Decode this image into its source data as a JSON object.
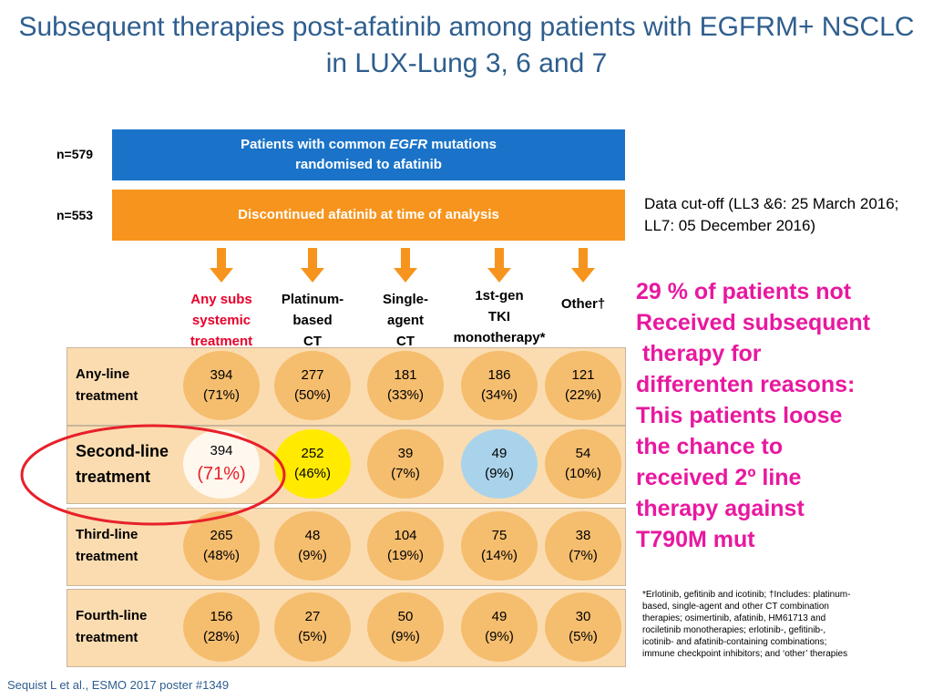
{
  "title": {
    "line1": "Subsequent therapies post-afatinib among patients with EGFRM+ NSCLC",
    "line2": "in LUX-Lung 3, 6 and 7"
  },
  "flow": {
    "randomised": {
      "n": "n=579",
      "line1_pre": "Patients with common ",
      "line1_gene": "EGFR",
      "line1_post": " mutations",
      "line2": "randomised to afatinib"
    },
    "discontinued": {
      "n": "n=553",
      "label": "Discontinued afatinib at time of analysis"
    }
  },
  "data_cutoff": "Data cut-off (LL3 &6: 25 March 2016;  LL7: 05 December 2016)",
  "columns": [
    {
      "lines": [
        "Any subs",
        "systemic",
        "treatment"
      ],
      "red": true
    },
    {
      "lines": [
        "Platinum-",
        "based",
        "CT"
      ],
      "red": false
    },
    {
      "lines": [
        "Single-",
        "agent",
        "CT"
      ],
      "red": false
    },
    {
      "lines": [
        "1st-gen",
        "TKI",
        "monotherapy*"
      ],
      "red": false
    },
    {
      "lines": [
        "Other†"
      ],
      "red": false
    }
  ],
  "rows": [
    {
      "label": [
        "Any-line",
        "treatment"
      ],
      "cells": [
        [
          "394",
          "(71%)"
        ],
        [
          "277",
          "(50%)"
        ],
        [
          "181",
          "(33%)"
        ],
        [
          "186",
          "(34%)"
        ],
        [
          "121",
          "(22%)"
        ]
      ]
    },
    {
      "label": [
        "Second-line",
        "treatment"
      ],
      "cells": [
        [
          "394",
          "(71%)"
        ],
        [
          "252",
          "(46%)"
        ],
        [
          "39",
          "(7%)"
        ],
        [
          "49",
          "(9%)"
        ],
        [
          "54",
          "(10%)"
        ]
      ]
    },
    {
      "label": [
        "Third-line",
        "treatment"
      ],
      "cells": [
        [
          "265",
          "(48%)"
        ],
        [
          "48",
          "(9%)"
        ],
        [
          "104",
          "(19%)"
        ],
        [
          "75",
          "(14%)"
        ],
        [
          "38",
          "(7%)"
        ]
      ]
    },
    {
      "label": [
        "Fourth-line",
        "treatment"
      ],
      "cells": [
        [
          "156",
          "(28%)"
        ],
        [
          "27",
          "(5%)"
        ],
        [
          "50",
          "(9%)"
        ],
        [
          "49",
          "(9%)"
        ],
        [
          "30",
          "(5%)"
        ]
      ]
    }
  ],
  "callout": [
    "29 % of patients  not",
    "Received subsequent",
    " therapy for",
    "differenten reasons:",
    "This patients loose",
    "the chance to",
    "received 2º line",
    "therapy against",
    "T790M mut"
  ],
  "footnote": [
    "*Erlotinib, gefitinib and icotinib; †Includes: platinum-",
    "based, single-agent and other CT combination",
    "therapies; osimertinib, afatinib, HM61713 and",
    "rociletinib monotherapies; erlotinib-, gefitinib-,",
    "icotinib- and afatinib-containing combinations;",
    "immune checkpoint inhibitors; and ‘other’ therapies"
  ],
  "citation": "Sequist L et al., ESMO 2017  poster #1349",
  "colors": {
    "title": "#2e5e8e",
    "blue_bar": "#1a73c8",
    "orange_bar": "#f7941d",
    "row_background": "#fbdcb0",
    "cell": "#f5bd6e",
    "cell_highlight_yellow": "#ffea00",
    "cell_highlight_blue": "#a9d3ea",
    "cell_highlight_white": "#fff8ef",
    "callout": "#e8189f",
    "ring": "#e8202a"
  }
}
